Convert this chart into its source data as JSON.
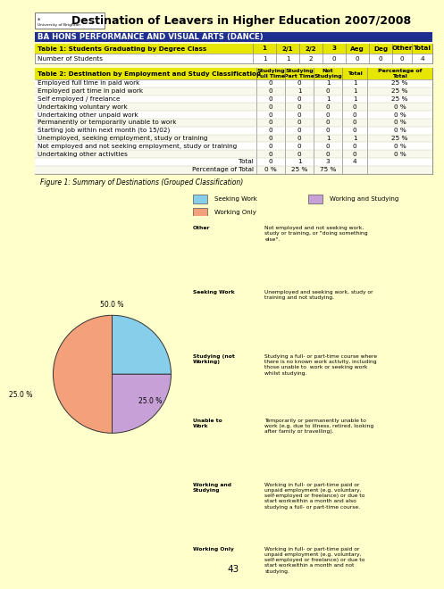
{
  "title": "Destination of Leavers in Higher Education 2007/2008",
  "subtitle": "BA HONS PERFORMANCE AND VISUAL ARTS (DANCE)",
  "bg_color": "#FFFFCC",
  "header_color": "#1F2F8F",
  "table1_headers": [
    "Table 1: Students Graduating by Degree Class",
    "1",
    "2/1",
    "2/2",
    "3",
    "Aeg",
    "Deg",
    "Other",
    "Total"
  ],
  "table1_row": [
    "Number of Students",
    "1",
    "1",
    "2",
    "0",
    "0",
    "0",
    "0",
    "4"
  ],
  "table2_rows": [
    [
      "Employed full time in paid work",
      "0",
      "0",
      "1",
      "1",
      "25 %"
    ],
    [
      "Employed part time in paid work",
      "0",
      "1",
      "0",
      "1",
      "25 %"
    ],
    [
      "Self employed / freelance",
      "0",
      "0",
      "1",
      "1",
      "25 %"
    ],
    [
      "Undertaking voluntary work",
      "0",
      "0",
      "0",
      "0",
      "0 %"
    ],
    [
      "Undertaking other unpaid work",
      "0",
      "0",
      "0",
      "0",
      "0 %"
    ],
    [
      "Permanently or temporarily unable to work",
      "0",
      "0",
      "0",
      "0",
      "0 %"
    ],
    [
      "Starting job within next month (to 15/02)",
      "0",
      "0",
      "0",
      "0",
      "0 %"
    ],
    [
      "Unemployed, seeking employment, study or training",
      "0",
      "0",
      "1",
      "1",
      "25 %"
    ],
    [
      "Not employed and not seeking employment, study or training",
      "0",
      "0",
      "0",
      "0",
      "0 %"
    ],
    [
      "Undertaking other activities",
      "0",
      "0",
      "0",
      "0",
      "0 %"
    ],
    [
      "Total",
      "0",
      "1",
      "3",
      "4",
      ""
    ],
    [
      "Percentage of Total",
      "0 %",
      "25 %",
      "75 %",
      "",
      ""
    ]
  ],
  "figure_title": "Figure 1: Summary of Destinations (Grouped Classification)",
  "pie_sizes": [
    25.0,
    25.0,
    50.0
  ],
  "pie_colors": [
    "#87CEEB",
    "#C8A0D8",
    "#F4A07A"
  ],
  "pie_legend_labels": [
    "Seeking Work",
    "Working and Studying",
    "Working Only"
  ],
  "pie_legend_colors": [
    "#87CEEB",
    "#C8A0D8",
    "#F4A07A"
  ],
  "pie_pct_labels": [
    "25.0 %",
    "25.0 %",
    "50.0 %"
  ],
  "definitions": [
    [
      "Other",
      "Not employed and not seeking work,\nstudy or training, or \"doing something\nelse\"."
    ],
    [
      "Seeking Work",
      "Unemployed and seeking work, study or\ntraining and not studying."
    ],
    [
      "Studying (not\nWorking)",
      "Studying a full- or part-time course where\nthere is no known work activity, including\nthose unable to  work or seeking work\nwhilst studying."
    ],
    [
      "Unable to\nWork",
      "Temporarily or permanently unable to\nwork (e.g. due to illness, retired, looking\nafter family or travelling)."
    ],
    [
      "Working and\nStudying",
      "Working in full- or part-time paid or\nunpaid employment (e.g. voluntary,\nself-employed or freelance) or due to\nstart workwithin a month and also\nstudying a full- or part-time course."
    ],
    [
      "Working Only",
      "Working in full- or part-time paid or\nunpaid employment (e.g. voluntary,\nself-employed or freelance) or due to\nstart workwithin a month and not\nstudying."
    ]
  ],
  "page_number": "43"
}
